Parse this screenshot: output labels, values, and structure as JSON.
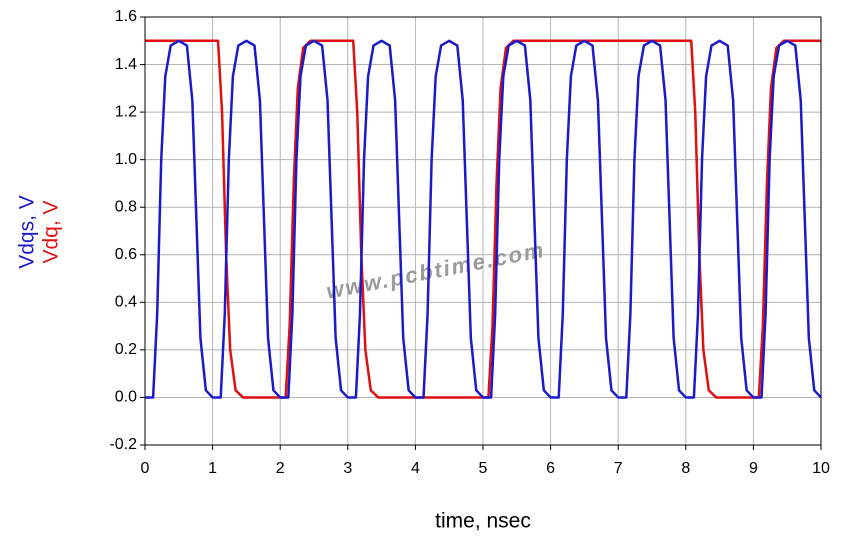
{
  "chart_data": {
    "type": "line",
    "xlabel": "time, nsec",
    "watermark": "www.pcbtime.com",
    "xlim": [
      0,
      10
    ],
    "xticks": [
      0,
      1,
      2,
      3,
      4,
      5,
      6,
      7,
      8,
      9,
      10
    ],
    "ylim": [
      -0.2,
      1.6
    ],
    "yticks": [
      -0.2,
      {
        "value": 0,
        "label": "0.0"
      },
      0.2,
      0.4,
      0.6,
      0.8,
      {
        "value": 1,
        "label": "1.0"
      },
      1.2,
      1.4,
      1.6
    ],
    "grid": true,
    "series": [
      {
        "name": "Vdqs, V",
        "color": "#1a1acc",
        "x": [
          0,
          0.12,
          0.18,
          0.24,
          0.3,
          0.38,
          0.5,
          0.62,
          0.7,
          0.76,
          0.82,
          0.9,
          1,
          1.12,
          1.18,
          1.24,
          1.3,
          1.38,
          1.5,
          1.62,
          1.7,
          1.76,
          1.82,
          1.9,
          2,
          2.12,
          2.18,
          2.24,
          2.3,
          2.38,
          2.5,
          2.62,
          2.7,
          2.76,
          2.82,
          2.9,
          3,
          3.12,
          3.18,
          3.24,
          3.3,
          3.38,
          3.5,
          3.62,
          3.7,
          3.76,
          3.82,
          3.9,
          4,
          4.12,
          4.18,
          4.24,
          4.3,
          4.38,
          4.5,
          4.62,
          4.7,
          4.76,
          4.82,
          4.9,
          5,
          5.12,
          5.18,
          5.24,
          5.3,
          5.38,
          5.5,
          5.62,
          5.7,
          5.76,
          5.82,
          5.9,
          6,
          6.12,
          6.18,
          6.24,
          6.3,
          6.38,
          6.5,
          6.62,
          6.7,
          6.76,
          6.82,
          6.9,
          7,
          7.12,
          7.18,
          7.24,
          7.3,
          7.38,
          7.5,
          7.62,
          7.7,
          7.76,
          7.82,
          7.9,
          8,
          8.12,
          8.18,
          8.24,
          8.3,
          8.38,
          8.5,
          8.62,
          8.7,
          8.76,
          8.82,
          8.9,
          9,
          9.12,
          9.18,
          9.24,
          9.3,
          9.38,
          9.5,
          9.62,
          9.7,
          9.76,
          9.82,
          9.9,
          10
        ],
        "values": [
          0,
          0,
          0.35,
          1.0,
          1.35,
          1.48,
          1.5,
          1.48,
          1.25,
          0.75,
          0.25,
          0.03,
          0,
          0,
          0.35,
          1.0,
          1.35,
          1.48,
          1.5,
          1.48,
          1.25,
          0.75,
          0.25,
          0.03,
          0,
          0,
          0.35,
          1.0,
          1.35,
          1.48,
          1.5,
          1.48,
          1.25,
          0.75,
          0.25,
          0.03,
          0,
          0,
          0.35,
          1.0,
          1.35,
          1.48,
          1.5,
          1.48,
          1.25,
          0.75,
          0.25,
          0.03,
          0,
          0,
          0.35,
          1.0,
          1.35,
          1.48,
          1.5,
          1.48,
          1.25,
          0.75,
          0.25,
          0.03,
          0,
          0,
          0.35,
          1.0,
          1.35,
          1.48,
          1.5,
          1.48,
          1.25,
          0.75,
          0.25,
          0.03,
          0,
          0,
          0.35,
          1.0,
          1.35,
          1.48,
          1.5,
          1.48,
          1.25,
          0.75,
          0.25,
          0.03,
          0,
          0,
          0.35,
          1.0,
          1.35,
          1.48,
          1.5,
          1.48,
          1.25,
          0.75,
          0.25,
          0.03,
          0,
          0,
          0.35,
          1.0,
          1.35,
          1.48,
          1.5,
          1.48,
          1.25,
          0.75,
          0.25,
          0.03,
          0,
          0,
          0.35,
          1.0,
          1.35,
          1.48,
          1.5,
          1.48,
          1.25,
          0.75,
          0.25,
          0.03,
          0
        ]
      },
      {
        "name": "Vdq, V",
        "color": "#e01010",
        "x": [
          0,
          1.08,
          1.14,
          1.2,
          1.26,
          1.34,
          1.45,
          2.08,
          2.14,
          2.2,
          2.26,
          2.34,
          2.45,
          3.08,
          3.14,
          3.2,
          3.26,
          3.34,
          3.45,
          5.08,
          5.14,
          5.2,
          5.26,
          5.34,
          5.45,
          8.08,
          8.14,
          8.2,
          8.26,
          8.34,
          8.45,
          9.08,
          9.14,
          9.2,
          9.26,
          9.34,
          9.45,
          10
        ],
        "values": [
          1.5,
          1.5,
          1.2,
          0.6,
          0.2,
          0.03,
          0,
          0,
          0.3,
          0.9,
          1.3,
          1.47,
          1.5,
          1.5,
          1.2,
          0.6,
          0.2,
          0.03,
          0,
          0,
          0.3,
          0.9,
          1.3,
          1.47,
          1.5,
          1.5,
          1.2,
          0.6,
          0.2,
          0.03,
          0,
          0,
          0.3,
          0.9,
          1.3,
          1.47,
          1.5,
          1.5
        ]
      }
    ]
  }
}
